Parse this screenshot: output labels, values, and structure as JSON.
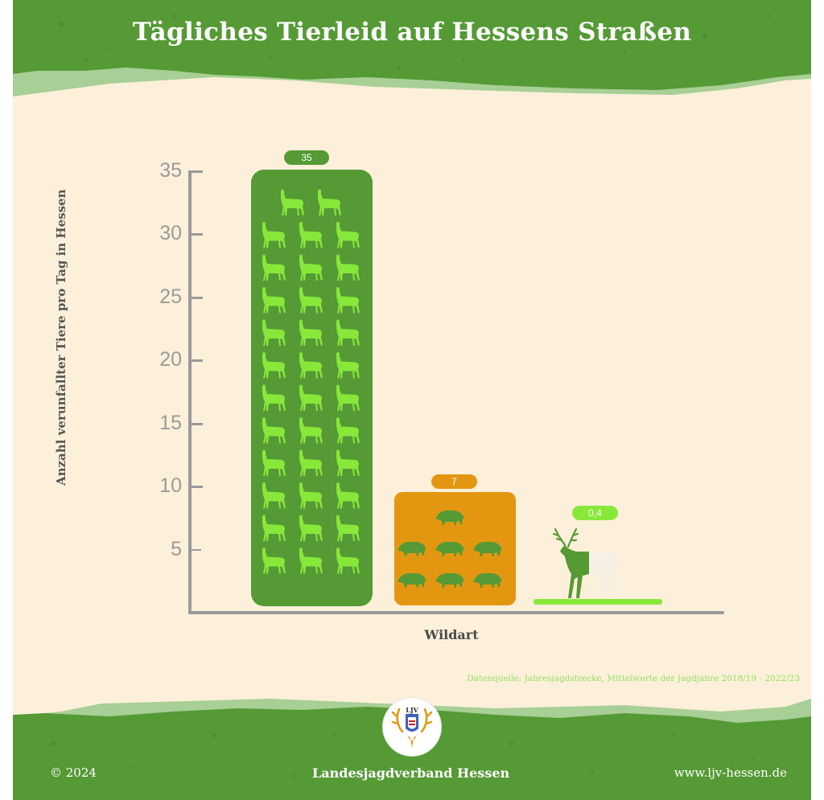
{
  "header": {
    "title": "Tägliches Tierleid auf Hessens Straßen"
  },
  "colors": {
    "background": "#fdf0da",
    "forest_green": "#559a35",
    "hill_light_green": "#a7cf96",
    "bright_green": "#88e83a",
    "orange": "#e39711",
    "axis_gray": "#9a9a9a",
    "dark_text": "#4a4a4a"
  },
  "chart_data": {
    "type": "bar",
    "title": "Tägliches Tierleid auf Hessens Straßen",
    "xlabel": "Wildart",
    "ylabel": "Anzahl verunfallter Tiere pro Tag in Hessen",
    "ylim": [
      0,
      35
    ],
    "yticks": [
      5,
      10,
      15,
      20,
      25,
      30,
      35
    ],
    "grid": false,
    "legend": "none",
    "categories": [
      "Rehwild",
      "Schwarzwild",
      "Rotwild"
    ],
    "category_icons": [
      "roe-deer-icon",
      "wild-boar-icon",
      "red-deer-stag-icon"
    ],
    "values": [
      35,
      7,
      0.4
    ],
    "value_labels": [
      "35",
      "7",
      "0,4"
    ],
    "bar_colors": [
      "#559a35",
      "#e39711",
      "#88e83a"
    ],
    "annotation": "Datenquelle: Jahresjagdstrecke, Mittelwerte der Jagdjahre 2018/19 - 2022/23"
  },
  "axis": {
    "y_label": "Anzahl verunfallter Tiere pro Tag in Hessen",
    "x_label": "Wildart",
    "ticks": [
      {
        "label": "35",
        "value": 35
      },
      {
        "label": "30",
        "value": 30
      },
      {
        "label": "25",
        "value": 25
      },
      {
        "label": "20",
        "value": 20
      },
      {
        "label": "15",
        "value": 15
      },
      {
        "label": "10",
        "value": 10
      },
      {
        "label": "5",
        "value": 5
      }
    ]
  },
  "bars": [
    {
      "label": "35",
      "icon": "roe-deer-icon",
      "count": 35
    },
    {
      "label": "7",
      "icon": "wild-boar-icon",
      "count": 7
    },
    {
      "label": "0,4",
      "icon": "red-deer-stag-icon",
      "count": 0.4
    }
  ],
  "source": "Datenquelle: Jahresjagdstrecke, Mittelwerte der Jagdjahre 2018/19 - 2022/23",
  "footer": {
    "copyright": "© 2024",
    "organization": "Landesjagdverband Hessen",
    "website": "www.ljv-hessen.de",
    "logo_text": "LJV"
  }
}
